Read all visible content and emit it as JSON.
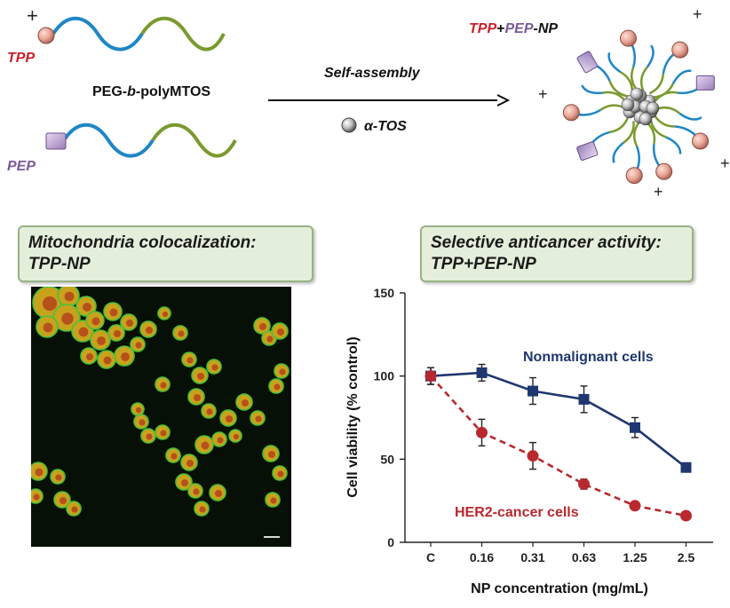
{
  "scheme": {
    "tpp_label": "TPP",
    "pep_label": "PEP",
    "polymer_label": "PEG-b-polyMTOS",
    "polymer_prefix": "PEG-",
    "polymer_b": "b",
    "polymer_suffix": "-polyMTOS",
    "self_assembly": "Self-assembly",
    "tos_label": "α-TOS",
    "np_label_tpp": "TPP",
    "np_label_plus": "+",
    "np_label_pep": "PEP",
    "np_label_np": "-NP",
    "plus_sign": "+"
  },
  "colocalization_box": {
    "line1": "Mitochondria colocalization:",
    "line2": "TPP-NP"
  },
  "anticancer_box": {
    "line1": "Selective anticancer activity:",
    "line2": "TPP+PEP-NP"
  },
  "colors": {
    "tpp": "#c8202a",
    "pep": "#7a5a99",
    "peg_blue": "#1f86c7",
    "poly_green": "#7a9a2e",
    "nonmalignant": "#1f3770",
    "cancer": "#b8282e"
  },
  "chart_data": {
    "type": "line",
    "categories": [
      "C",
      "0.16",
      "0.31",
      "0.63",
      "1.25",
      "2.5"
    ],
    "series": [
      {
        "name": "Nonmalignant cells",
        "values": [
          100,
          102,
          91,
          86,
          69,
          45
        ],
        "errors": [
          5,
          5,
          8,
          8,
          6,
          0
        ],
        "style": "solid",
        "marker": "square"
      },
      {
        "name": "HER2-cancer cells",
        "values": [
          100,
          66,
          52,
          35,
          22,
          16
        ],
        "errors": [
          5,
          8,
          8,
          3,
          0,
          2
        ],
        "style": "dashed",
        "marker": "circle"
      }
    ],
    "xlabel": "NP concentration (mg/mL)",
    "ylabel": "Cell viability (% control)",
    "ylim": [
      0,
      150
    ],
    "yticks": [
      0,
      50,
      100,
      150
    ]
  }
}
